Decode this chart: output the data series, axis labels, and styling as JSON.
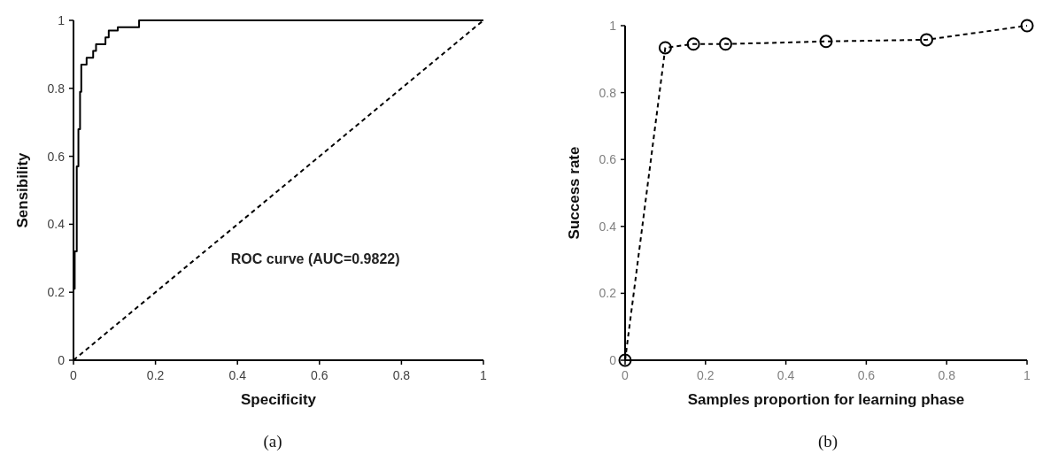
{
  "chart_data": [
    {
      "type": "line",
      "title": "(a)",
      "xlabel": "Specificity",
      "ylabel": "Sensibility",
      "xlim": [
        0,
        1
      ],
      "ylim": [
        0,
        1
      ],
      "xticks": [
        0,
        0.2,
        0.4,
        0.6,
        0.8,
        1
      ],
      "yticks": [
        0,
        0.2,
        0.4,
        0.6,
        0.8,
        1
      ],
      "marker": "none",
      "annotations": [
        "ROC curve (AUC=0.9822)"
      ],
      "series": [
        {
          "type": "step",
          "color": "#000000",
          "line_style": "solid",
          "x": [
            0,
            0,
            0.003,
            0.008,
            0.012,
            0.016,
            0.019,
            0.032,
            0.048,
            0.055,
            0.078,
            0.086,
            0.108,
            0.16,
            1
          ],
          "values": [
            0,
            0.21,
            0.32,
            0.57,
            0.68,
            0.79,
            0.87,
            0.89,
            0.91,
            0.93,
            0.95,
            0.97,
            0.98,
            1,
            1
          ]
        },
        {
          "type": "line",
          "color": "#000000",
          "line_style": "dashed",
          "x": [
            0,
            1
          ],
          "values": [
            0,
            1
          ]
        }
      ]
    },
    {
      "type": "line",
      "title": "(b)",
      "xlabel": "Samples proportion for learning phase",
      "ylabel": "Success rate",
      "xlim": [
        0,
        1
      ],
      "ylim": [
        0,
        1
      ],
      "xticks": [
        0,
        0.2,
        0.4,
        0.6,
        0.8,
        1
      ],
      "yticks": [
        0,
        0.2,
        0.4,
        0.6,
        0.8,
        1
      ],
      "marker": "circle",
      "line_style": "dashed",
      "series": [
        {
          "color": "#000000",
          "x": [
            0,
            0.1,
            0.17,
            0.25,
            0.5,
            0.75,
            1
          ],
          "values": [
            0,
            0.934,
            0.945,
            0.945,
            0.953,
            0.958,
            1
          ]
        }
      ]
    }
  ]
}
